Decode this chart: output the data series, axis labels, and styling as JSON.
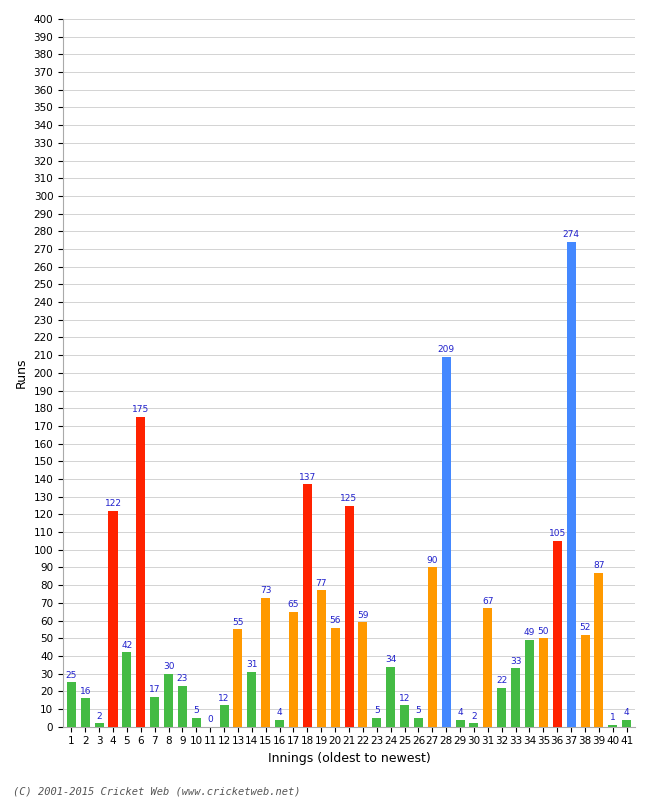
{
  "innings": [
    1,
    2,
    3,
    4,
    5,
    6,
    7,
    8,
    9,
    10,
    11,
    12,
    13,
    14,
    15,
    16,
    17,
    18,
    19,
    20,
    21,
    22,
    23,
    24,
    25,
    26,
    27,
    28,
    29,
    30,
    31,
    32,
    33,
    34,
    35,
    36,
    37,
    38,
    39,
    40,
    41
  ],
  "scores": [
    25,
    16,
    2,
    122,
    42,
    175,
    17,
    30,
    23,
    5,
    0,
    12,
    55,
    31,
    73,
    4,
    65,
    137,
    77,
    56,
    125,
    59,
    5,
    34,
    12,
    5,
    90,
    209,
    4,
    2,
    67,
    22,
    33,
    49,
    50,
    105,
    274,
    52,
    87,
    1,
    4
  ],
  "colors": [
    "#44bb44",
    "#44bb44",
    "#44bb44",
    "#ff2200",
    "#44bb44",
    "#ff2200",
    "#44bb44",
    "#44bb44",
    "#44bb44",
    "#44bb44",
    "#44bb44",
    "#44bb44",
    "#ff9900",
    "#44bb44",
    "#ff9900",
    "#44bb44",
    "#ff9900",
    "#ff2200",
    "#ff9900",
    "#ff9900",
    "#ff2200",
    "#ff9900",
    "#44bb44",
    "#44bb44",
    "#44bb44",
    "#44bb44",
    "#ff9900",
    "#4488ff",
    "#44bb44",
    "#44bb44",
    "#ff9900",
    "#44bb44",
    "#44bb44",
    "#44bb44",
    "#ff9900",
    "#ff2200",
    "#4488ff",
    "#ff9900",
    "#ff9900",
    "#44bb44",
    "#44bb44"
  ],
  "ylabel": "Runs",
  "xlabel": "Innings (oldest to newest)",
  "ylim": [
    0,
    400
  ],
  "ytick_step": 10,
  "bg_color": "#ffffff",
  "grid_color": "#cccccc",
  "bar_width": 0.65,
  "label_fontsize": 6.5,
  "axis_label_fontsize": 9,
  "tick_fontsize": 7.5,
  "label_color": "#2222cc",
  "footer": "(C) 2001-2015 Cricket Web (www.cricketweb.net)"
}
